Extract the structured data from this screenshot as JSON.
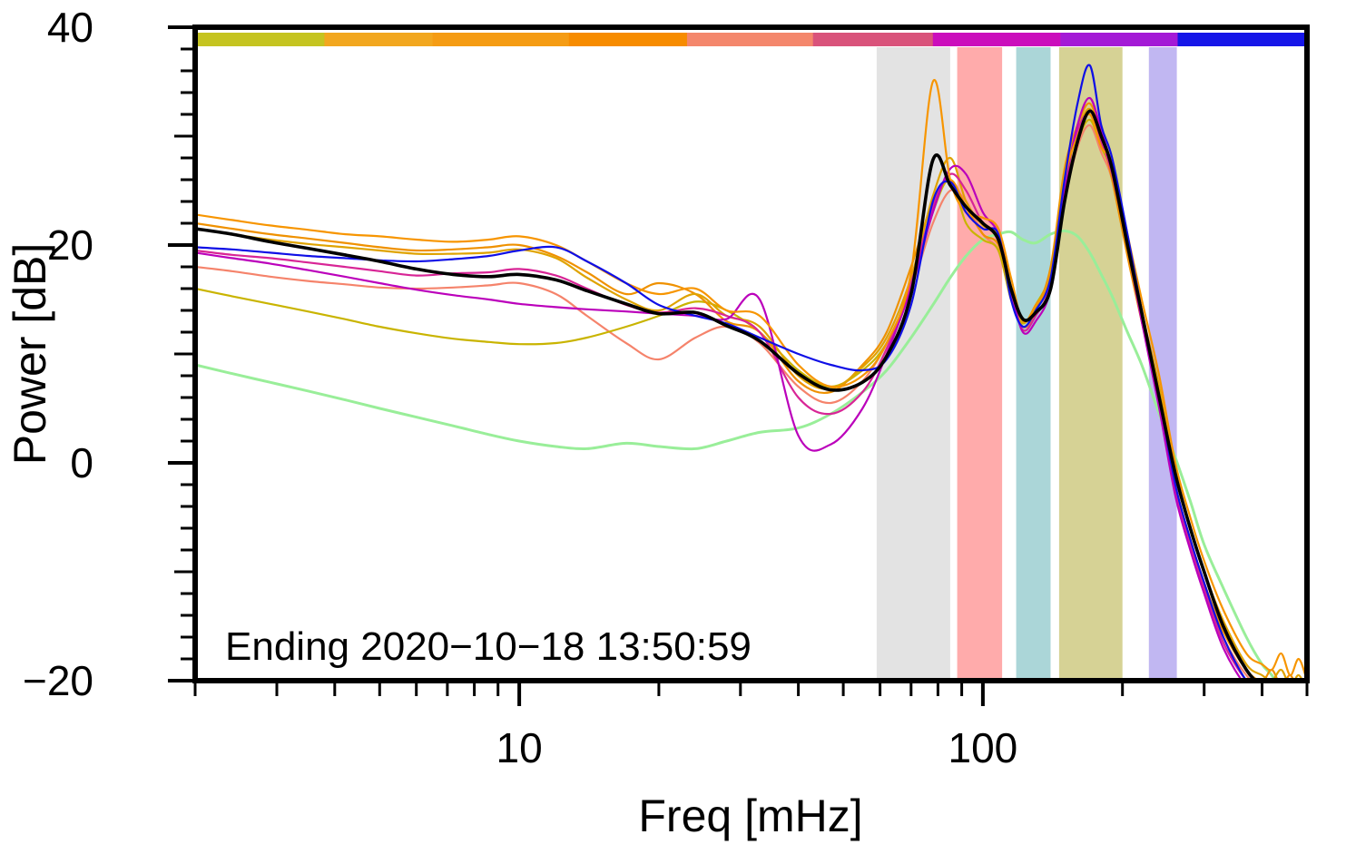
{
  "chart_data": {
    "type": "line",
    "title": "",
    "xlabel": "Freq [mHz]",
    "ylabel": "Power [dB]",
    "annotation": "Ending 2020−10−18 13:50:59",
    "xscale": "log",
    "xlim": [
      2,
      500
    ],
    "ylim": [
      -20,
      40
    ],
    "grid": false,
    "legend": "none",
    "xticks": [
      {
        "value": 10,
        "label": "10"
      },
      {
        "value": 100,
        "label": "100"
      }
    ],
    "yticks": [
      {
        "value": -20,
        "label": "−20"
      },
      {
        "value": 0,
        "label": "0"
      },
      {
        "value": 20,
        "label": "20"
      },
      {
        "value": 40,
        "label": "40"
      }
    ],
    "x_minor_ticks": [
      2,
      3,
      4,
      5,
      6,
      7,
      8,
      9,
      20,
      30,
      40,
      50,
      60,
      70,
      80,
      90,
      200,
      300,
      400,
      500
    ],
    "y_minor_step": 2,
    "bands": [
      {
        "x0": 59,
        "x1": 85,
        "color": "#e3e3e3"
      },
      {
        "x0": 88,
        "x1": 110,
        "color": "#ffabab"
      },
      {
        "x0": 118,
        "x1": 140,
        "color": "#abd6d8"
      },
      {
        "x0": 146,
        "x1": 200,
        "color": "#d6d295"
      },
      {
        "x0": 228,
        "x1": 262,
        "color": "#c1b7f2"
      }
    ],
    "top_bar": [
      {
        "x0": 2,
        "x1": 3.8,
        "color": "#c5c420"
      },
      {
        "x0": 3.8,
        "x1": 6.5,
        "color": "#f2a71f"
      },
      {
        "x0": 6.5,
        "x1": 12.8,
        "color": "#f59c14"
      },
      {
        "x0": 12.8,
        "x1": 23,
        "color": "#f78c00"
      },
      {
        "x0": 23,
        "x1": 43,
        "color": "#f4876c"
      },
      {
        "x0": 43,
        "x1": 78,
        "color": "#d9537b"
      },
      {
        "x0": 78,
        "x1": 147,
        "color": "#cb0ebc"
      },
      {
        "x0": 147,
        "x1": 263,
        "color": "#a41ad6"
      },
      {
        "x0": 263,
        "x1": 500,
        "color": "#1616e8"
      }
    ],
    "x": [
      2,
      2.4,
      2.9,
      3.5,
      4.2,
      5,
      6,
      7.2,
      8.6,
      10,
      12,
      14,
      17,
      20,
      24,
      28,
      33,
      40,
      47,
      55,
      62,
      70,
      78,
      85,
      92,
      100,
      108,
      115,
      122,
      130,
      140,
      150,
      160,
      170,
      180,
      190,
      205,
      220,
      240,
      260,
      280,
      300,
      330,
      370,
      400,
      420,
      440,
      460,
      480,
      500
    ],
    "series": [
      {
        "name": "green-smooth",
        "color": "#99ee99",
        "width": 3,
        "y": [
          9.0,
          8.2,
          7.4,
          6.6,
          5.8,
          5.0,
          4.2,
          3.4,
          2.6,
          2.0,
          1.5,
          1.3,
          1.8,
          1.5,
          1.3,
          2.0,
          2.8,
          3.2,
          4.5,
          6.5,
          8.5,
          11.5,
          14.5,
          17.0,
          19.0,
          20.5,
          21.0,
          21.2,
          20.5,
          20.2,
          21.0,
          21.3,
          20.8,
          19.3,
          17.3,
          15.3,
          12.0,
          9.0,
          4.5,
          0.5,
          -3.5,
          -7.5,
          -11.5,
          -16.0,
          -18.5,
          -19.5,
          -21,
          -21,
          -21,
          -21
        ]
      },
      {
        "name": "salmon",
        "color": "#f5836b",
        "width": 2.2,
        "y": [
          18.0,
          17.6,
          17.1,
          16.7,
          16.4,
          16.1,
          16.0,
          16.1,
          16.3,
          16.5,
          15.5,
          13.5,
          11.0,
          9.5,
          11.5,
          12.5,
          11.0,
          7.0,
          5.5,
          7.5,
          11.0,
          16.0,
          22.0,
          25.0,
          24.0,
          21.0,
          19.5,
          15.0,
          12.5,
          13.5,
          16.5,
          24.0,
          29.0,
          31.0,
          28.5,
          26.0,
          19.5,
          13.0,
          6.0,
          -2.0,
          -7.0,
          -11.0,
          -16.0,
          -19.5,
          -20.5,
          -21,
          -21,
          -21,
          -21,
          -21
        ]
      },
      {
        "name": "olive",
        "color": "#c9b400",
        "width": 2.2,
        "y": [
          16.0,
          15.3,
          14.6,
          13.9,
          13.2,
          12.5,
          11.9,
          11.4,
          11.1,
          10.9,
          11.0,
          11.5,
          12.5,
          13.5,
          14.8,
          14.0,
          12.0,
          8.5,
          7.0,
          8.5,
          11.0,
          16.0,
          23.0,
          26.0,
          22.0,
          20.5,
          19.5,
          15.0,
          12.8,
          14.5,
          17.5,
          25.0,
          29.5,
          31.5,
          29.0,
          26.5,
          20.0,
          13.5,
          6.5,
          -1.0,
          -6.0,
          -10.0,
          -15.0,
          -19.0,
          -20.5,
          -21,
          -21,
          -21,
          -21,
          -21
        ]
      },
      {
        "name": "orange-2",
        "color": "#ef9100",
        "width": 2.2,
        "y": [
          22.0,
          21.5,
          21.0,
          20.6,
          20.2,
          19.8,
          19.5,
          19.6,
          19.8,
          20.0,
          19.0,
          17.5,
          15.5,
          16.5,
          15.5,
          13.0,
          12.0,
          7.5,
          6.5,
          9.0,
          12.0,
          18.0,
          24.0,
          26.0,
          23.5,
          21.0,
          20.0,
          15.5,
          12.5,
          14.0,
          18.0,
          27.0,
          31.0,
          33.0,
          30.0,
          26.0,
          19.0,
          13.0,
          6.0,
          -2.0,
          -7.0,
          -11.0,
          -15.5,
          -19.0,
          -20.0,
          -19.0,
          -20.5,
          -19.5,
          -21.0,
          -21.0
        ]
      },
      {
        "name": "goldenrod",
        "color": "#dfa300",
        "width": 2.2,
        "y": [
          21.5,
          21.0,
          20.5,
          20.1,
          19.8,
          19.5,
          19.2,
          19.2,
          19.3,
          19.6,
          18.8,
          17.0,
          15.0,
          14.0,
          15.5,
          13.5,
          12.5,
          8.0,
          6.8,
          8.8,
          11.5,
          17.0,
          24.5,
          28.0,
          24.0,
          21.8,
          20.8,
          16.0,
          13.0,
          14.2,
          17.2,
          26.5,
          30.5,
          32.5,
          29.5,
          27.0,
          20.5,
          14.0,
          7.0,
          -1.0,
          -6.0,
          -10.0,
          -14.5,
          -18.5,
          -19.5,
          -20.0,
          -19.0,
          -20.5,
          -19.5,
          -21.0
        ]
      },
      {
        "name": "violet-red",
        "color": "#d82596",
        "width": 2.2,
        "y": [
          19.5,
          19.1,
          18.8,
          18.4,
          18.0,
          17.6,
          17.2,
          17.4,
          17.5,
          17.8,
          17.2,
          16.0,
          14.5,
          13.8,
          14.2,
          13.5,
          12.0,
          6.0,
          4.5,
          6.5,
          10.5,
          16.5,
          23.5,
          26.5,
          25.0,
          22.0,
          20.5,
          15.5,
          12.2,
          13.5,
          16.5,
          25.5,
          30.5,
          32.0,
          29.5,
          26.5,
          19.8,
          13.2,
          5.5,
          -2.5,
          -7.5,
          -11.5,
          -16.5,
          -20.0,
          -21,
          -21,
          -21,
          -21,
          -21,
          -21
        ]
      },
      {
        "name": "magenta",
        "color": "#bb00bb",
        "width": 2.2,
        "y": [
          19.3,
          18.8,
          18.3,
          17.7,
          17.1,
          16.5,
          15.9,
          15.4,
          15.0,
          14.6,
          14.3,
          14.1,
          13.9,
          13.7,
          13.5,
          13.2,
          15.0,
          2.5,
          1.7,
          5.0,
          10.0,
          16.0,
          23.0,
          27.0,
          26.5,
          23.0,
          21.0,
          16.0,
          12.0,
          13.0,
          16.0,
          25.0,
          31.0,
          33.5,
          30.5,
          27.0,
          20.0,
          13.0,
          5.0,
          -3.0,
          -8.0,
          -12.0,
          -17.0,
          -20.5,
          -21,
          -21,
          -21,
          -21,
          -21,
          -21
        ]
      },
      {
        "name": "orange-1",
        "color": "#f79500",
        "width": 2.2,
        "y": [
          22.8,
          22.3,
          21.8,
          21.4,
          21.0,
          20.8,
          20.5,
          20.3,
          20.5,
          20.8,
          20.0,
          18.5,
          16.5,
          15.5,
          16.0,
          14.0,
          13.5,
          9.0,
          7.0,
          8.0,
          11.0,
          17.5,
          35.0,
          26.0,
          23.0,
          22.5,
          21.5,
          17.0,
          13.0,
          14.5,
          17.0,
          26.0,
          30.0,
          32.0,
          29.0,
          27.5,
          21.0,
          15.0,
          8.0,
          0.0,
          -5.0,
          -9.0,
          -13.5,
          -17.5,
          -18.5,
          -19.0,
          -17.5,
          -19.5,
          -18.0,
          -20.0
        ]
      },
      {
        "name": "blue",
        "color": "#0f0fe6",
        "width": 2.2,
        "y": [
          19.8,
          19.6,
          19.3,
          19.0,
          18.8,
          18.6,
          18.5,
          18.7,
          19.0,
          19.5,
          19.8,
          18.5,
          16.5,
          14.5,
          13.5,
          12.8,
          11.5,
          10.0,
          9.0,
          8.5,
          9.5,
          14.5,
          24.0,
          25.8,
          23.0,
          21.5,
          21.0,
          15.0,
          12.5,
          14.0,
          17.0,
          26.0,
          33.0,
          36.5,
          31.0,
          28.0,
          21.0,
          14.0,
          6.0,
          -2.0,
          -7.0,
          -11.0,
          -16.0,
          -20.0,
          -21,
          -21,
          -21,
          -21,
          -21,
          -21
        ]
      },
      {
        "name": "mean-black",
        "color": "#000000",
        "width": 3.6,
        "y": [
          21.5,
          21.0,
          20.3,
          19.7,
          19.1,
          18.5,
          17.8,
          17.3,
          17.1,
          17.3,
          16.8,
          15.8,
          14.6,
          13.7,
          13.8,
          12.6,
          11.2,
          8.2,
          6.7,
          7.4,
          9.8,
          15.5,
          27.8,
          25.5,
          23.5,
          22.0,
          20.5,
          16.0,
          13.2,
          13.8,
          16.0,
          24.0,
          29.5,
          32.3,
          30.0,
          27.0,
          20.0,
          13.8,
          6.0,
          -1.0,
          -6.0,
          -10.0,
          -15.0,
          -19.0,
          -20.5,
          -21,
          -21,
          -21,
          -21,
          -21
        ]
      }
    ]
  }
}
